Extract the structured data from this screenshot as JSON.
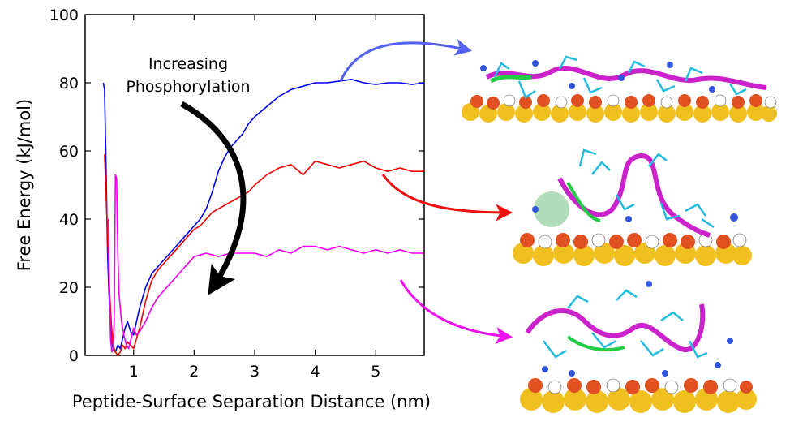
{
  "chart_data": {
    "type": "line",
    "xlabel": "Peptide-Surface Separation Distance (nm)",
    "ylabel": "Free Energy (kJ/mol)",
    "xlim": [
      0.2,
      5.8
    ],
    "ylim": [
      0,
      100
    ],
    "xticks": [
      1,
      2,
      3,
      4,
      5
    ],
    "yticks": [
      0,
      20,
      40,
      60,
      80,
      100
    ],
    "grid": false,
    "annotation": {
      "line1": "Increasing",
      "line2": "Phosphorylation"
    },
    "series": [
      {
        "color": "#0000ee",
        "x": [
          0.5,
          0.52,
          0.54,
          0.57,
          0.6,
          0.63,
          0.66,
          0.7,
          0.74,
          0.78,
          0.82,
          0.86,
          0.9,
          0.95,
          1.0,
          1.05,
          1.1,
          1.2,
          1.3,
          1.4,
          1.5,
          1.6,
          1.7,
          1.8,
          1.9,
          2.0,
          2.1,
          2.2,
          2.3,
          2.4,
          2.5,
          2.6,
          2.7,
          2.8,
          2.9,
          3.0,
          3.2,
          3.4,
          3.6,
          3.8,
          4.0,
          4.2,
          4.4,
          4.6,
          4.8,
          5.0,
          5.2,
          5.4,
          5.6,
          5.8
        ],
        "y": [
          80,
          78,
          60,
          30,
          15,
          5,
          2,
          1,
          3,
          2,
          5,
          8,
          10,
          7,
          6,
          10,
          14,
          20,
          24,
          26,
          28,
          30,
          32,
          34,
          36,
          38,
          40,
          43,
          48,
          54,
          58,
          61,
          63,
          65,
          68,
          70,
          73,
          76,
          78,
          79,
          80,
          80,
          80.5,
          81,
          80,
          79.5,
          80,
          80,
          79.5,
          80
        ]
      },
      {
        "color": "#ee0000",
        "x": [
          0.52,
          0.54,
          0.56,
          0.58,
          0.6,
          0.63,
          0.66,
          0.7,
          0.74,
          0.78,
          0.82,
          0.86,
          0.9,
          0.95,
          1.0,
          1.1,
          1.2,
          1.3,
          1.4,
          1.5,
          1.6,
          1.7,
          1.8,
          1.9,
          2.0,
          2.1,
          2.2,
          2.3,
          2.4,
          2.5,
          2.6,
          2.7,
          2.8,
          2.9,
          3.0,
          3.2,
          3.4,
          3.6,
          3.8,
          4.0,
          4.2,
          4.4,
          4.6,
          4.8,
          5.0,
          5.2,
          5.4,
          5.6,
          5.8
        ],
        "y": [
          59,
          50,
          40,
          30,
          20,
          10,
          3,
          1,
          0,
          1,
          3,
          2,
          4,
          3,
          2,
          8,
          16,
          22,
          25,
          27,
          29,
          31,
          33,
          35,
          37,
          38,
          40,
          42,
          43,
          44,
          45,
          46,
          47,
          48,
          50,
          53,
          55,
          56,
          53,
          57,
          56,
          55,
          56,
          57,
          55,
          54,
          55,
          54,
          54
        ]
      },
      {
        "color": "#ee00ee",
        "x": [
          0.58,
          0.6,
          0.62,
          0.64,
          0.66,
          0.68,
          0.7,
          0.72,
          0.74,
          0.76,
          0.78,
          0.8,
          0.84,
          0.88,
          0.92,
          0.96,
          1.0,
          1.05,
          1.1,
          1.2,
          1.3,
          1.4,
          1.5,
          1.6,
          1.7,
          1.8,
          1.9,
          2.0,
          2.2,
          2.4,
          2.6,
          2.8,
          3.0,
          3.2,
          3.4,
          3.6,
          3.8,
          4.0,
          4.2,
          4.4,
          4.6,
          4.8,
          5.0,
          5.2,
          5.4,
          5.6,
          5.8
        ],
        "y": [
          40,
          20,
          5,
          1,
          2,
          10,
          53,
          52,
          30,
          18,
          14,
          10,
          6,
          3,
          2,
          5,
          8,
          6,
          7,
          10,
          14,
          17,
          19,
          21,
          23,
          25,
          27,
          29,
          30,
          29,
          30,
          30,
          30,
          29,
          31,
          30,
          32,
          32,
          31,
          32,
          31,
          30,
          31,
          30,
          31,
          30,
          30
        ]
      }
    ]
  }
}
